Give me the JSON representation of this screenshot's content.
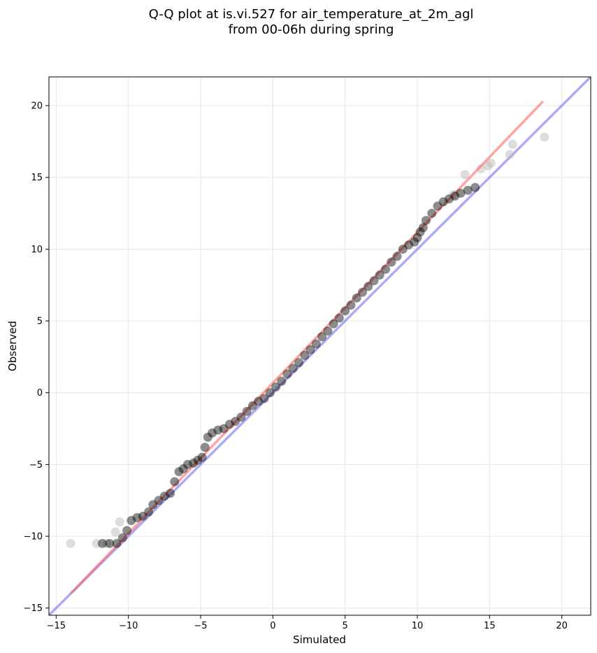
{
  "chart_data": {
    "type": "scatter",
    "title_line1": "Q-Q plot at is.vi.527 for air_temperature_at_2m_agl",
    "title_line2": "from 00-06h during spring",
    "xlabel": "Simulated",
    "ylabel": "Observed",
    "xlim": [
      -15.5,
      22
    ],
    "ylim": [
      -15.5,
      22
    ],
    "xticks": [
      -15,
      -10,
      -5,
      0,
      5,
      10,
      15,
      20
    ],
    "yticks": [
      -15,
      -10,
      -5,
      0,
      5,
      10,
      15,
      20
    ],
    "xtick_labels": [
      "−15",
      "−10",
      "−5",
      "0",
      "5",
      "10",
      "15",
      "20"
    ],
    "ytick_labels": [
      "−15",
      "−10",
      "−5",
      "0",
      "5",
      "10",
      "15",
      "20"
    ],
    "grid": true,
    "colors": {
      "points": "#000000",
      "points_light": "#bbbbbb",
      "fit_line": "#ff6666",
      "identity_line": "#6666ee"
    },
    "identity_line": {
      "x": [
        -15.5,
        22
      ],
      "y": [
        -15.5,
        22
      ]
    },
    "fit_line": {
      "x": [
        -14,
        18.7
      ],
      "y": [
        -14,
        20.3
      ]
    },
    "light_points": {
      "x": [
        -14.0,
        -12.2,
        -11.5,
        -10.9,
        -10.6,
        13.3,
        12.5,
        14.4,
        14.9,
        15.1,
        16.4,
        16.6,
        18.8
      ],
      "y": [
        -10.5,
        -10.5,
        -10.5,
        -9.7,
        -9.0,
        15.2,
        13.8,
        15.6,
        15.8,
        16.0,
        16.6,
        17.3,
        17.8
      ]
    },
    "points": {
      "x": [
        -11.8,
        -11.3,
        -10.8,
        -10.4,
        -10.1,
        -9.8,
        -9.4,
        -9.0,
        -8.6,
        -8.3,
        -7.9,
        -7.5,
        -7.1,
        -6.8,
        -6.5,
        -6.2,
        -5.9,
        -5.5,
        -5.2,
        -4.9,
        -4.7,
        -4.5,
        -4.2,
        -3.8,
        -3.4,
        -3.0,
        -2.6,
        -2.2,
        -1.8,
        -1.4,
        -1.0,
        -0.6,
        -0.2,
        0.2,
        0.6,
        1.0,
        1.4,
        1.8,
        2.2,
        2.6,
        3.0,
        3.4,
        3.8,
        4.2,
        4.6,
        5.0,
        5.4,
        5.8,
        6.2,
        6.6,
        7.0,
        7.4,
        7.8,
        8.2,
        8.6,
        9.0,
        9.4,
        9.8,
        10.0,
        10.2,
        10.4,
        10.6,
        11.0,
        11.4,
        11.8,
        12.2,
        12.6,
        13.0,
        13.5,
        14.0
      ],
      "y": [
        -10.5,
        -10.5,
        -10.5,
        -10.1,
        -9.6,
        -8.9,
        -8.7,
        -8.6,
        -8.3,
        -7.8,
        -7.5,
        -7.2,
        -7.0,
        -6.2,
        -5.5,
        -5.3,
        -5.0,
        -4.9,
        -4.7,
        -4.5,
        -3.8,
        -3.1,
        -2.8,
        -2.6,
        -2.5,
        -2.2,
        -2.0,
        -1.7,
        -1.3,
        -0.9,
        -0.6,
        -0.4,
        0.0,
        0.4,
        0.8,
        1.3,
        1.7,
        2.1,
        2.6,
        3.0,
        3.4,
        3.9,
        4.3,
        4.8,
        5.2,
        5.7,
        6.1,
        6.6,
        7.0,
        7.4,
        7.8,
        8.2,
        8.6,
        9.1,
        9.5,
        10.0,
        10.3,
        10.5,
        10.8,
        11.2,
        11.5,
        12.0,
        12.5,
        13.0,
        13.3,
        13.5,
        13.7,
        13.9,
        14.1,
        14.3
      ]
    }
  }
}
